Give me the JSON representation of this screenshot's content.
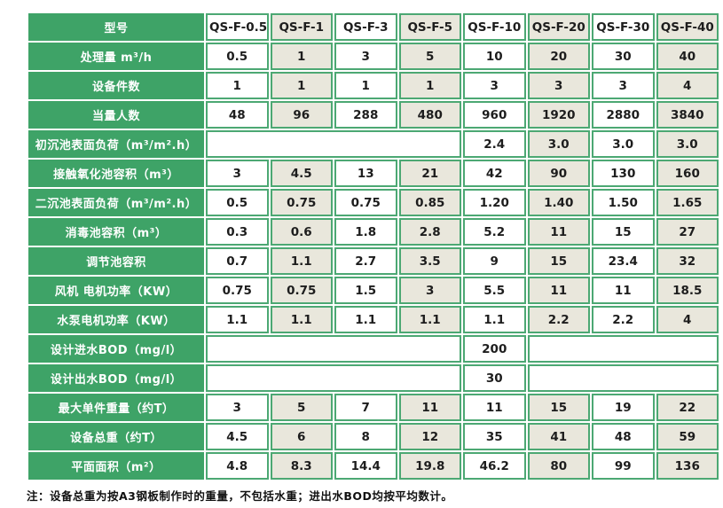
{
  "colors": {
    "label_green": "#3EA367",
    "border_green": "#4CA873",
    "cell_beige": "#E9E7DC",
    "cell_white": "#FFFFFF",
    "text_dark": "#1D1D1D"
  },
  "table": {
    "header": {
      "label": "型号",
      "models": [
        "QS-F-0.5",
        "QS-F-1",
        "QS-F-3",
        "QS-F-5",
        "QS-F-10",
        "QS-F-20",
        "QS-F-30",
        "QS-F-40"
      ]
    },
    "rows": [
      {
        "label": "处理量 m³/h",
        "cells": [
          {
            "t": "0.5"
          },
          {
            "t": "1"
          },
          {
            "t": "3"
          },
          {
            "t": "5"
          },
          {
            "t": "10"
          },
          {
            "t": "20"
          },
          {
            "t": "30"
          },
          {
            "t": "40"
          }
        ]
      },
      {
        "label": "设备件数",
        "cells": [
          {
            "t": "1"
          },
          {
            "t": "1"
          },
          {
            "t": "1"
          },
          {
            "t": "1"
          },
          {
            "t": "3"
          },
          {
            "t": "3"
          },
          {
            "t": "3"
          },
          {
            "t": "4"
          }
        ]
      },
      {
        "label": "当量人数",
        "cells": [
          {
            "t": "48"
          },
          {
            "t": "96"
          },
          {
            "t": "288"
          },
          {
            "t": "480"
          },
          {
            "t": "960"
          },
          {
            "t": "1920"
          },
          {
            "t": "2880"
          },
          {
            "t": "3840"
          }
        ]
      },
      {
        "label": "初沉池表面负荷（m³/m².h）",
        "cells": [
          {
            "t": "",
            "span": 4
          },
          {
            "t": "2.4"
          },
          {
            "t": "3.0"
          },
          {
            "t": "3.0"
          },
          {
            "t": "3.0"
          }
        ]
      },
      {
        "label": "接触氧化池容积（m³）",
        "cells": [
          {
            "t": "3"
          },
          {
            "t": "4.5"
          },
          {
            "t": "13"
          },
          {
            "t": "21"
          },
          {
            "t": "42"
          },
          {
            "t": "90"
          },
          {
            "t": "130"
          },
          {
            "t": "160"
          }
        ]
      },
      {
        "label": "二沉池表面负荷（m³/m².h）",
        "cells": [
          {
            "t": "0.5"
          },
          {
            "t": "0.75"
          },
          {
            "t": "0.75"
          },
          {
            "t": "0.85"
          },
          {
            "t": "1.20"
          },
          {
            "t": "1.40"
          },
          {
            "t": "1.50"
          },
          {
            "t": "1.65"
          }
        ]
      },
      {
        "label": "消毒池容积（m³）",
        "cells": [
          {
            "t": "0.3"
          },
          {
            "t": "0.6"
          },
          {
            "t": "1.8"
          },
          {
            "t": "2.8"
          },
          {
            "t": "5.2"
          },
          {
            "t": "11"
          },
          {
            "t": "15"
          },
          {
            "t": "27"
          }
        ]
      },
      {
        "label": "调节池容积",
        "cells": [
          {
            "t": "0.7"
          },
          {
            "t": "1.1"
          },
          {
            "t": "2.7"
          },
          {
            "t": "3.5"
          },
          {
            "t": "9"
          },
          {
            "t": "15"
          },
          {
            "t": "23.4"
          },
          {
            "t": "32"
          }
        ]
      },
      {
        "label": "风机 电机功率（KW）",
        "cells": [
          {
            "t": "0.75"
          },
          {
            "t": "0.75"
          },
          {
            "t": "1.5"
          },
          {
            "t": "3"
          },
          {
            "t": "5.5"
          },
          {
            "t": "11"
          },
          {
            "t": "11"
          },
          {
            "t": "18.5"
          }
        ]
      },
      {
        "label": "水泵电机功率（KW）",
        "cells": [
          {
            "t": "1.1"
          },
          {
            "t": "1.1"
          },
          {
            "t": "1.1"
          },
          {
            "t": "1.1"
          },
          {
            "t": "1.1"
          },
          {
            "t": "2.2"
          },
          {
            "t": "2.2"
          },
          {
            "t": "4"
          }
        ]
      },
      {
        "label": "设计进水BOD（mg/l）",
        "cells": [
          {
            "t": "",
            "span": 4
          },
          {
            "t": "200"
          },
          {
            "t": "",
            "span": 3
          }
        ]
      },
      {
        "label": "设计出水BOD（mg/l）",
        "cells": [
          {
            "t": "",
            "span": 4
          },
          {
            "t": "30"
          },
          {
            "t": "",
            "span": 3
          }
        ]
      },
      {
        "label": "最大单件重量（约T）",
        "cells": [
          {
            "t": "3"
          },
          {
            "t": "5"
          },
          {
            "t": "7"
          },
          {
            "t": "11"
          },
          {
            "t": "11"
          },
          {
            "t": "15"
          },
          {
            "t": "19"
          },
          {
            "t": "22"
          }
        ]
      },
      {
        "label": "设备总重（约T）",
        "cells": [
          {
            "t": "4.5"
          },
          {
            "t": "6"
          },
          {
            "t": "8"
          },
          {
            "t": "12"
          },
          {
            "t": "35"
          },
          {
            "t": "41"
          },
          {
            "t": "48"
          },
          {
            "t": "59"
          }
        ]
      },
      {
        "label": "平面面积（m²）",
        "cells": [
          {
            "t": "4.8"
          },
          {
            "t": "8.3"
          },
          {
            "t": "14.4"
          },
          {
            "t": "19.8"
          },
          {
            "t": "46.2"
          },
          {
            "t": "80"
          },
          {
            "t": "99"
          },
          {
            "t": "136"
          }
        ]
      }
    ]
  },
  "note": "注：设备总重为按A3钢板制作时的重量，不包括水重；进出水BOD均按平均数计。"
}
